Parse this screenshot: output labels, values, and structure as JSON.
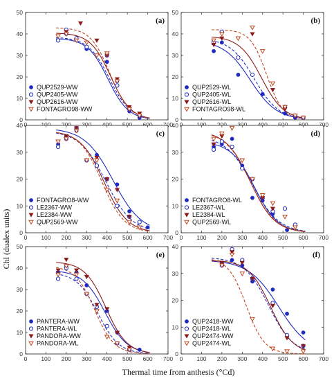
{
  "figure": {
    "ylabel": "Chl (dualex units)",
    "xlabel": "Thermal time from anthesis (°Cd)"
  },
  "chart_data": [
    {
      "type": "scatter",
      "panel": "(a)",
      "xlim": [
        0,
        700
      ],
      "ylim": [
        0,
        50
      ],
      "xticks": [
        "0",
        "100",
        "200",
        "300",
        "400",
        "500",
        "600",
        "700"
      ],
      "yticks": [
        "0",
        "10",
        "20",
        "30",
        "40",
        "50"
      ],
      "legend_position": "bottom-left",
      "series": [
        {
          "name": "QUP2529-WW",
          "marker": "filled-circle",
          "line": "solid",
          "color": "#1f2bbf",
          "x": [
            160,
            200,
            250,
            300,
            400,
            450,
            510,
            560
          ],
          "y": [
            37,
            40,
            38,
            33,
            27,
            18,
            4,
            1
          ],
          "curve": {
            "upper": 38,
            "mid": 405,
            "scale": 50
          }
        },
        {
          "name": "QUP2405-WW",
          "marker": "open-circle",
          "line": "dashed",
          "color": "#1f2bbf",
          "x": [
            160,
            200,
            250,
            300,
            400,
            450,
            510,
            560
          ],
          "y": [
            37,
            42,
            38,
            34,
            30,
            16,
            5,
            2
          ],
          "curve": {
            "upper": 38.5,
            "mid": 412,
            "scale": 52
          }
        },
        {
          "name": "QUP2616-WW",
          "marker": "filled-triangle",
          "line": "solid",
          "color": "#8b1a1a",
          "x": [
            160,
            200,
            270,
            350,
            400,
            450,
            510,
            560
          ],
          "y": [
            39,
            41,
            45,
            37,
            30,
            19,
            6,
            3
          ],
          "curve": {
            "upper": 40.5,
            "mid": 418,
            "scale": 50
          }
        },
        {
          "name": "FONTAGRO98-WW",
          "marker": "open-triangle",
          "line": "dashed",
          "color": "#c0461e",
          "x": [
            160,
            200,
            250,
            300,
            350,
            400,
            450,
            510,
            560
          ],
          "y": [
            39,
            40,
            37,
            36,
            30,
            31,
            18,
            5,
            2
          ],
          "curve": {
            "upper": 43,
            "mid": 415,
            "scale": 48
          }
        }
      ]
    },
    {
      "type": "scatter",
      "panel": "(b)",
      "xlim": [
        0,
        700
      ],
      "ylim": [
        0,
        50
      ],
      "xticks": [
        "0",
        "100",
        "200",
        "300",
        "400",
        "500",
        "600",
        "700"
      ],
      "yticks": [
        "0",
        "10",
        "20",
        "30",
        "40",
        "50"
      ],
      "legend_position": "bottom-left",
      "series": [
        {
          "name": "QUP2529-WL",
          "marker": "filled-circle",
          "line": "solid",
          "color": "#1f2bbf",
          "x": [
            160,
            200,
            280,
            400,
            510,
            560,
            600
          ],
          "y": [
            32,
            36,
            21,
            12,
            3,
            1,
            1
          ],
          "curve": {
            "upper": 37,
            "mid": 340,
            "scale": 65
          }
        },
        {
          "name": "QUP2405-WL",
          "marker": "open-circle",
          "line": "dashed",
          "color": "#1f2bbf",
          "x": [
            160,
            200,
            280,
            350,
            510,
            560,
            600
          ],
          "y": [
            36,
            41,
            29,
            21,
            6,
            2,
            1
          ],
          "curve": {
            "upper": 38,
            "mid": 360,
            "scale": 60
          }
        },
        {
          "name": "QUP2616-WL",
          "marker": "filled-triangle",
          "line": "solid",
          "color": "#8b1a1a",
          "x": [
            160,
            200,
            280,
            350,
            450,
            510,
            560,
            600
          ],
          "y": [
            35,
            38,
            38,
            40,
            14,
            5,
            2,
            1
          ],
          "curve": {
            "upper": 39,
            "mid": 395,
            "scale": 55
          }
        },
        {
          "name": "FONTAGRO98-WL",
          "marker": "open-triangle",
          "line": "dashed",
          "color": "#c0461e",
          "x": [
            160,
            200,
            280,
            350,
            400,
            450,
            510,
            560,
            600
          ],
          "y": [
            37,
            40,
            38,
            43,
            32,
            17,
            6,
            2,
            1
          ],
          "curve": {
            "upper": 42,
            "mid": 420,
            "scale": 40
          }
        }
      ]
    },
    {
      "type": "scatter",
      "panel": "(c)",
      "xlim": [
        0,
        700
      ],
      "ylim": [
        0,
        40
      ],
      "xticks": [
        "0",
        "100",
        "200",
        "300",
        "400",
        "500",
        "600",
        "700"
      ],
      "yticks": [
        "0",
        "10",
        "20",
        "30",
        "40"
      ],
      "legend_position": "bottom-left",
      "series": [
        {
          "name": "FONTAGRO8-WW",
          "marker": "filled-circle",
          "line": "solid",
          "color": "#1f2bbf",
          "x": [
            160,
            200,
            250,
            300,
            350,
            400,
            450,
            510,
            600
          ],
          "y": [
            33,
            36,
            38,
            27,
            29,
            20,
            18,
            8,
            2
          ],
          "curve": {
            "upper": 39,
            "mid": 430,
            "scale": 70
          }
        },
        {
          "name": "LE2367-WW",
          "marker": "open-circle",
          "line": "dashed",
          "color": "#1f2bbf",
          "x": [
            160,
            200,
            250,
            300,
            350,
            400,
            450,
            510,
            560
          ],
          "y": [
            32,
            35,
            39,
            27,
            25,
            20,
            10,
            6,
            4
          ],
          "curve": {
            "upper": 38,
            "mid": 395,
            "scale": 65
          }
        },
        {
          "name": "LE2384-WW",
          "marker": "filled-triangle",
          "line": "solid",
          "color": "#8b1a1a",
          "x": [
            160,
            200,
            250,
            300,
            350,
            400,
            450,
            510
          ],
          "y": [
            34,
            36,
            39,
            27,
            28,
            20,
            16,
            6
          ],
          "curve": {
            "upper": 38,
            "mid": 385,
            "scale": 58
          }
        },
        {
          "name": "QUP2569-WW",
          "marker": "open-triangle",
          "line": "dashed",
          "color": "#c0461e",
          "x": [
            160,
            200,
            250,
            300,
            350,
            400,
            450,
            510,
            560
          ],
          "y": [
            34,
            35,
            38,
            27,
            27,
            16,
            12,
            4,
            2
          ],
          "curve": {
            "upper": 38,
            "mid": 375,
            "scale": 55
          }
        }
      ]
    },
    {
      "type": "scatter",
      "panel": "(d)",
      "xlim": [
        0,
        700
      ],
      "ylim": [
        0,
        40
      ],
      "xticks": [
        "0",
        "100",
        "200",
        "300",
        "400",
        "500",
        "600",
        "700"
      ],
      "yticks": [
        "0",
        "10",
        "20",
        "30",
        "40"
      ],
      "legend_position": "bottom-left",
      "series": [
        {
          "name": "FONTAGRO8-WL",
          "marker": "filled-circle",
          "line": "solid",
          "color": "#1f2bbf",
          "x": [
            160,
            200,
            250,
            300,
            350,
            400,
            450,
            520
          ],
          "y": [
            32,
            33,
            35,
            25,
            13,
            12,
            7,
            1
          ],
          "curve": {
            "upper": 34,
            "mid": 360,
            "scale": 58
          }
        },
        {
          "name": "LE2367-WL",
          "marker": "open-circle",
          "line": "dashed",
          "color": "#1f2bbf",
          "x": [
            160,
            200,
            250,
            300,
            350,
            400,
            450,
            510,
            560
          ],
          "y": [
            31,
            34,
            32,
            24,
            20,
            13,
            8,
            9,
            3
          ],
          "curve": {
            "upper": 36,
            "mid": 350,
            "scale": 65
          }
        },
        {
          "name": "LE2384-WL",
          "marker": "filled-triangle",
          "line": "solid",
          "color": "#8b1a1a",
          "x": [
            160,
            200,
            250,
            300,
            350,
            400,
            450,
            510,
            560
          ],
          "y": [
            33,
            36,
            39,
            27,
            20,
            13,
            9,
            6,
            2
          ],
          "curve": {
            "upper": 38,
            "mid": 340,
            "scale": 60
          }
        },
        {
          "name": "QUP2569-WL",
          "marker": "open-triangle",
          "line": "dashed",
          "color": "#c0461e",
          "x": [
            160,
            200,
            250,
            300,
            350,
            400,
            450,
            510,
            560
          ],
          "y": [
            35,
            37,
            39,
            27,
            20,
            14,
            11,
            6,
            2
          ],
          "curve": {
            "upper": 38,
            "mid": 340,
            "scale": 62
          }
        }
      ]
    },
    {
      "type": "scatter",
      "panel": "(e)",
      "xlim": [
        0,
        700
      ],
      "ylim": [
        0,
        50
      ],
      "xticks": [
        "0",
        "100",
        "200",
        "300",
        "400",
        "500",
        "600",
        "700"
      ],
      "yticks": [
        "0",
        "10",
        "20",
        "30",
        "40",
        "50"
      ],
      "legend_position": "bottom-left",
      "series": [
        {
          "name": "PANTERA-WW",
          "marker": "filled-circle",
          "line": "solid",
          "color": "#1f2bbf",
          "x": [
            160,
            200,
            250,
            300,
            350,
            400,
            450,
            560
          ],
          "y": [
            38,
            41,
            38,
            32,
            22,
            20,
            10,
            2
          ],
          "curve": {
            "upper": 39,
            "mid": 390,
            "scale": 55
          }
        },
        {
          "name": "PANTERA-WL",
          "marker": "open-circle",
          "line": "dashed",
          "color": "#1f2bbf",
          "x": [
            160,
            200,
            250,
            300,
            350,
            400,
            450,
            510
          ],
          "y": [
            35,
            40,
            35,
            28,
            22,
            13,
            5,
            2
          ],
          "curve": {
            "upper": 38,
            "mid": 355,
            "scale": 52
          }
        },
        {
          "name": "PANDORA-WW",
          "marker": "filled-triangle",
          "line": "solid",
          "color": "#8b1a1a",
          "x": [
            160,
            200,
            250,
            300,
            350,
            400,
            450,
            510
          ],
          "y": [
            39,
            44,
            39,
            36,
            23,
            21,
            10,
            3
          ],
          "curve": {
            "upper": 43,
            "mid": 395,
            "scale": 52
          }
        },
        {
          "name": "PANDORA-WL",
          "marker": "open-triangle",
          "line": "dashed",
          "color": "#c0461e",
          "x": [
            160,
            200,
            250,
            300,
            350,
            400,
            450,
            510
          ],
          "y": [
            37,
            41,
            37,
            28,
            20,
            8,
            5,
            2
          ],
          "curve": {
            "upper": 41,
            "mid": 340,
            "scale": 48
          }
        }
      ]
    },
    {
      "type": "scatter",
      "panel": "(f)",
      "xlim": [
        0,
        700
      ],
      "ylim": [
        0,
        40
      ],
      "xticks": [
        "0",
        "100",
        "200",
        "300",
        "400",
        "500",
        "600",
        "700"
      ],
      "yticks": [
        "0",
        "10",
        "20",
        "30",
        "40"
      ],
      "legend_position": "bottom-left",
      "series": [
        {
          "name": "QUP2418-WW",
          "marker": "filled-circle",
          "line": "solid",
          "color": "#1f2bbf",
          "x": [
            200,
            250,
            300,
            350,
            450,
            520,
            600
          ],
          "y": [
            34,
            35,
            33,
            27,
            24,
            15,
            8
          ],
          "curve": {
            "upper": 35,
            "mid": 480,
            "scale": 75
          }
        },
        {
          "name": "QUP2418-WL",
          "marker": "open-circle",
          "line": "dashed",
          "color": "#1f2bbf",
          "x": [
            200,
            250,
            300,
            350,
            450,
            520,
            600
          ],
          "y": [
            33,
            39,
            35,
            28,
            19,
            7,
            3
          ],
          "curve": {
            "upper": 36,
            "mid": 430,
            "scale": 60
          }
        },
        {
          "name": "QUP2474-WW",
          "marker": "filled-triangle",
          "line": "solid",
          "color": "#8b1a1a",
          "x": [
            200,
            250,
            300,
            350,
            450,
            520,
            600
          ],
          "y": [
            34,
            38,
            34,
            28,
            18,
            6,
            3
          ],
          "curve": {
            "upper": 35,
            "mid": 440,
            "scale": 55
          }
        },
        {
          "name": "QUP2474-WL",
          "marker": "open-triangle",
          "line": "dashed",
          "color": "#c0461e",
          "x": [
            200,
            250,
            300,
            350,
            450,
            520,
            600
          ],
          "y": [
            33,
            37,
            30,
            13,
            2,
            1,
            1
          ],
          "curve": {
            "upper": 36,
            "mid": 320,
            "scale": 45
          }
        }
      ]
    }
  ]
}
